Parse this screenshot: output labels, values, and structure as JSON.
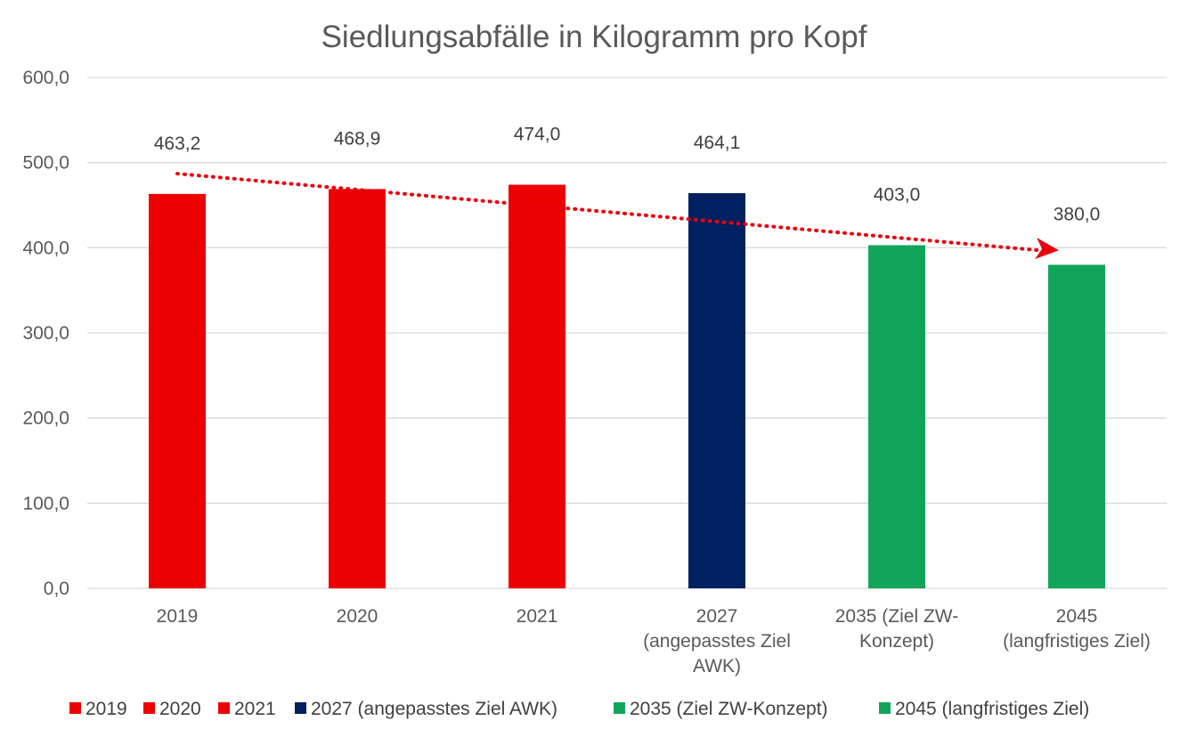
{
  "chart_data": {
    "type": "bar",
    "title": "Siedlungsabfälle in Kilogramm pro Kopf",
    "xlabel": "",
    "ylabel": "",
    "ylim": [
      0,
      600
    ],
    "yticks": [
      0,
      100,
      200,
      300,
      400,
      500,
      600
    ],
    "ytick_labels": [
      "0,0",
      "100,0",
      "200,0",
      "300,0",
      "400,0",
      "500,0",
      "600,0"
    ],
    "grid": true,
    "legend_position": "bottom",
    "categories": [
      {
        "lines": [
          "2019"
        ]
      },
      {
        "lines": [
          "2020"
        ]
      },
      {
        "lines": [
          "2021"
        ]
      },
      {
        "lines": [
          "2027",
          "(angepasstes Ziel",
          "AWK)"
        ]
      },
      {
        "lines": [
          "2035 (Ziel ZW-",
          "Konzept)"
        ]
      },
      {
        "lines": [
          "2045",
          "(langfristiges Ziel)"
        ]
      }
    ],
    "series": [
      {
        "name": "2019",
        "values": [
          463.2,
          null,
          null,
          null,
          null,
          null
        ],
        "value_labels": [
          "463,2",
          "",
          "",
          "",
          "",
          ""
        ],
        "color": "#ee0000"
      },
      {
        "name": "2020",
        "values": [
          null,
          468.9,
          null,
          null,
          null,
          null
        ],
        "value_labels": [
          "",
          "468,9",
          "",
          "",
          "",
          ""
        ],
        "color": "#ee0000"
      },
      {
        "name": "2021",
        "values": [
          null,
          null,
          474.0,
          null,
          null,
          null
        ],
        "value_labels": [
          "",
          "",
          "474,0",
          "",
          "",
          ""
        ],
        "color": "#ee0000"
      },
      {
        "name": "2027 (angepasstes Ziel AWK)",
        "values": [
          null,
          null,
          null,
          464.1,
          null,
          null
        ],
        "value_labels": [
          "",
          "",
          "",
          "464,1",
          "",
          ""
        ],
        "color": "#002060"
      },
      {
        "name": "2035 (Ziel ZW-Konzept)",
        "values": [
          null,
          null,
          null,
          null,
          403.0,
          null
        ],
        "value_labels": [
          "",
          "",
          "",
          "",
          "403,0",
          ""
        ],
        "color": "#12a55a"
      },
      {
        "name": "2045 (langfristiges Ziel)",
        "values": [
          null,
          null,
          null,
          null,
          null,
          380.0
        ],
        "value_labels": [
          "",
          "",
          "",
          "",
          "",
          "380,0"
        ],
        "color": "#12a55a"
      }
    ],
    "trend_arrow": {
      "style": "dotted",
      "color": "#e8000f",
      "from": [
        0,
        487
      ],
      "to": [
        5,
        398
      ]
    }
  }
}
